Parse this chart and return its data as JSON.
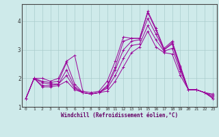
{
  "xlabel": "Windchill (Refroidissement éolien,°C)",
  "background_color": "#ceeaea",
  "grid_color": "#aacccc",
  "line_color": "#990099",
  "xlim": [
    -0.5,
    23.5
  ],
  "ylim": [
    1.0,
    4.6
  ],
  "xticks": [
    0,
    1,
    2,
    3,
    4,
    5,
    6,
    7,
    8,
    9,
    10,
    11,
    12,
    13,
    14,
    15,
    16,
    17,
    18,
    19,
    20,
    21,
    22,
    23
  ],
  "yticks": [
    1,
    2,
    3,
    4
  ],
  "series": [
    [
      1.3,
      2.0,
      2.0,
      1.9,
      2.0,
      2.6,
      2.8,
      1.55,
      1.5,
      1.55,
      1.9,
      2.6,
      3.45,
      3.4,
      3.4,
      4.35,
      3.75,
      3.05,
      3.3,
      2.45,
      1.6,
      1.6,
      1.5,
      1.3
    ],
    [
      1.3,
      2.0,
      1.9,
      1.85,
      1.9,
      2.55,
      1.8,
      1.5,
      1.45,
      1.5,
      1.75,
      2.4,
      3.3,
      3.4,
      3.4,
      4.3,
      3.7,
      3.0,
      3.25,
      2.4,
      1.6,
      1.6,
      1.5,
      1.3
    ],
    [
      1.3,
      2.0,
      1.85,
      1.8,
      1.8,
      2.3,
      1.7,
      1.5,
      1.45,
      1.5,
      1.7,
      2.3,
      3.0,
      3.3,
      3.35,
      4.1,
      3.55,
      3.0,
      3.2,
      2.35,
      1.6,
      1.6,
      1.5,
      1.35
    ],
    [
      1.3,
      2.0,
      1.75,
      1.75,
      1.8,
      2.1,
      1.65,
      1.5,
      1.45,
      1.5,
      1.65,
      2.1,
      2.7,
      3.15,
      3.2,
      3.85,
      3.35,
      2.95,
      3.05,
      2.25,
      1.6,
      1.6,
      1.5,
      1.4
    ],
    [
      1.3,
      2.0,
      1.7,
      1.7,
      1.75,
      1.9,
      1.6,
      1.5,
      1.45,
      1.5,
      1.55,
      1.9,
      2.4,
      2.9,
      3.1,
      3.65,
      3.1,
      2.9,
      2.85,
      2.1,
      1.6,
      1.6,
      1.5,
      1.45
    ]
  ]
}
